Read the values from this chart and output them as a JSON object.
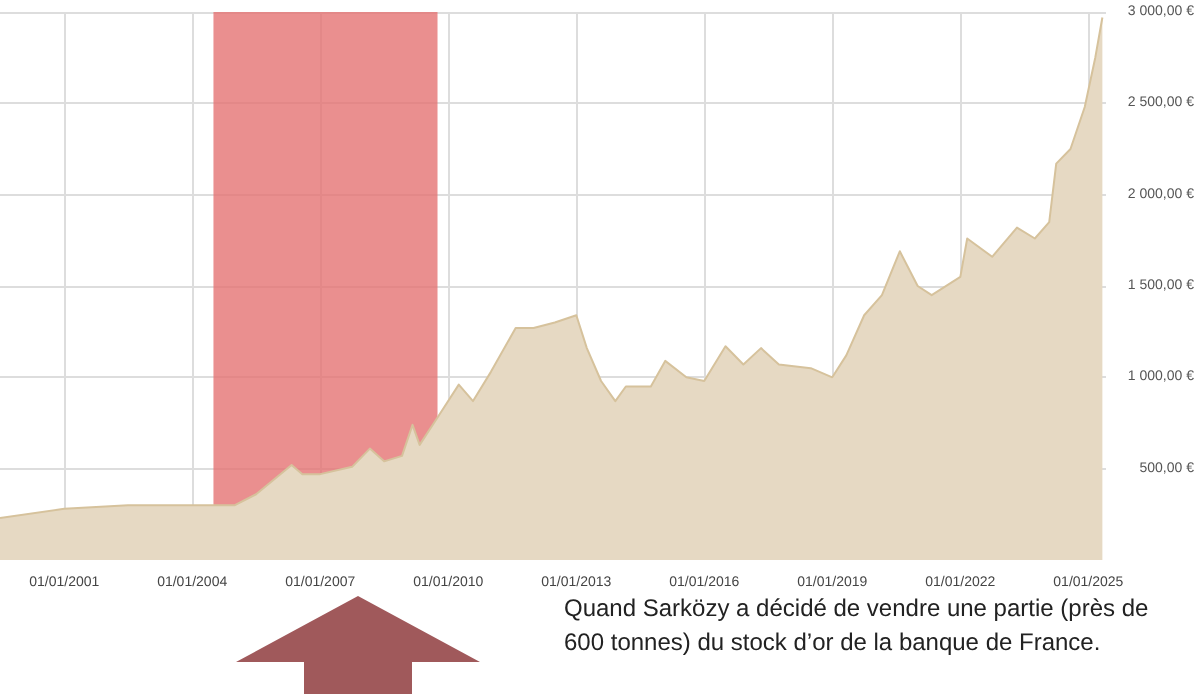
{
  "chart_data": {
    "type": "area",
    "x": [
      "1999-07",
      "2001-01",
      "2002-07",
      "2004-01",
      "2005-01",
      "2005-07",
      "2006-05",
      "2006-08",
      "2007-01",
      "2007-10",
      "2008-03",
      "2008-07",
      "2008-12",
      "2009-03",
      "2009-05",
      "2009-10",
      "2010-04",
      "2010-08",
      "2011-01",
      "2011-08",
      "2012-01",
      "2012-07",
      "2013-01",
      "2013-04",
      "2013-08",
      "2013-12",
      "2014-03",
      "2014-10",
      "2015-02",
      "2015-08",
      "2016-01",
      "2016-07",
      "2016-12",
      "2017-05",
      "2017-10",
      "2018-07",
      "2019-01",
      "2019-05",
      "2019-10",
      "2020-03",
      "2020-08",
      "2021-01",
      "2021-05",
      "2022-01",
      "2022-03",
      "2022-10",
      "2023-05",
      "2023-10",
      "2024-02",
      "2024-04",
      "2024-08",
      "2024-12",
      "2025-03",
      "2025-05"
    ],
    "series": [
      {
        "color": "#e6d9c3",
        "values": [
          230,
          280,
          300,
          300,
          300,
          360,
          520,
          470,
          470,
          510,
          610,
          540,
          570,
          740,
          630,
          780,
          960,
          870,
          1030,
          1270,
          1270,
          1300,
          1340,
          1160,
          980,
          870,
          950,
          950,
          1090,
          1000,
          980,
          1170,
          1070,
          1160,
          1070,
          1050,
          1000,
          1120,
          1340,
          1450,
          1690,
          1500,
          1450,
          1550,
          1760,
          1660,
          1820,
          1760,
          1850,
          2170,
          2250,
          2480,
          2750,
          2970
        ]
      }
    ],
    "xlim": [
      "1999-07",
      "2025-06"
    ],
    "xticks": [
      {
        "value": "2001-01-01",
        "label": "01/01/2001"
      },
      {
        "value": "2004-01-01",
        "label": "01/01/2004"
      },
      {
        "value": "2007-01-01",
        "label": "01/01/2007"
      },
      {
        "value": "2010-01-01",
        "label": "01/01/2010"
      },
      {
        "value": "2013-01-01",
        "label": "01/01/2013"
      },
      {
        "value": "2016-01-01",
        "label": "01/01/2016"
      },
      {
        "value": "2019-01-01",
        "label": "01/01/2019"
      },
      {
        "value": "2022-01-01",
        "label": "01/01/2022"
      },
      {
        "value": "2025-01-01",
        "label": "01/01/2025"
      }
    ],
    "ylim": [
      0,
      3000
    ],
    "yticks": [
      {
        "value": 500,
        "label": "500,00 €"
      },
      {
        "value": 1000,
        "label": "1 000,00 €"
      },
      {
        "value": 1500,
        "label": "1 500,00 €"
      },
      {
        "value": 2000,
        "label": "2 000,00 €"
      },
      {
        "value": 2500,
        "label": "2 500,00 €"
      },
      {
        "value": 3000,
        "label": "3 000,00 €"
      }
    ],
    "bands": [
      {
        "axis": "x",
        "from": "2004-07",
        "to": "2009-10",
        "color": "#e57373"
      }
    ],
    "annotations": [
      "Quand Sarközy a décidé de vendre une partie (près de 600 tonnes) du stock d’or de la banque de France."
    ],
    "grid": true,
    "marker": "none"
  }
}
